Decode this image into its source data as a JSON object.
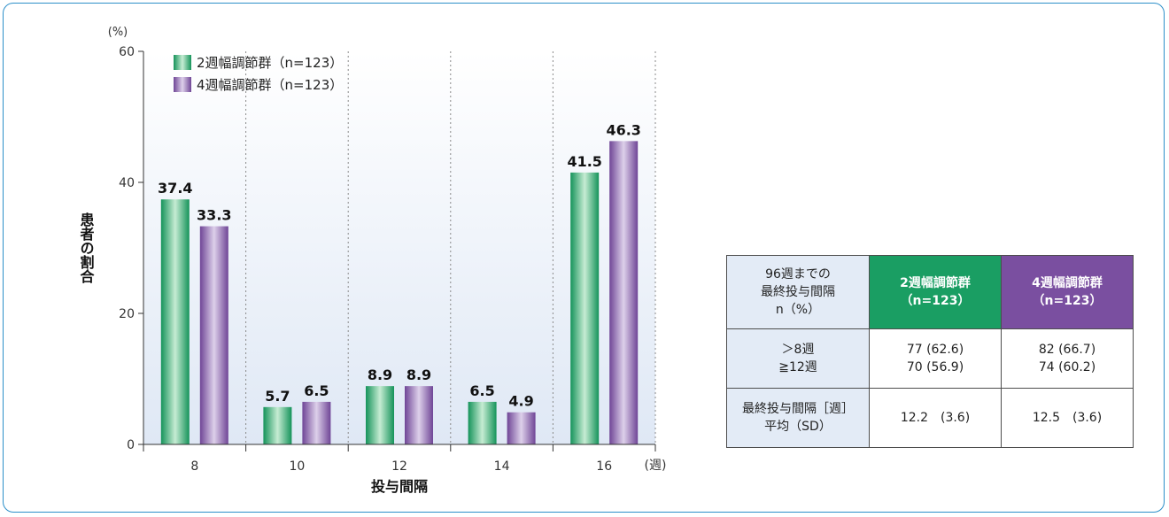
{
  "chart_data": {
    "type": "bar",
    "categories": [
      "8",
      "10",
      "12",
      "14",
      "16"
    ],
    "series": [
      {
        "name": "2週幅調節群（n=123）",
        "values": [
          37.4,
          5.7,
          8.9,
          6.5,
          41.5
        ],
        "color": "#1a9e63"
      },
      {
        "name": "4週幅調節群（n=123）",
        "values": [
          33.3,
          6.5,
          8.9,
          4.9,
          46.3
        ],
        "color": "#7a4fa0"
      }
    ],
    "data_labels_1": [
      "37.4",
      "5.7",
      "8.9",
      "6.5",
      "41.5"
    ],
    "data_labels_2": [
      "33.3",
      "6.5",
      "8.9",
      "4.9",
      "46.3"
    ],
    "ylim": [
      0,
      60
    ],
    "yticks": [
      0,
      20,
      40,
      60
    ],
    "ylabel": "患者の割合",
    "y_unit": "(%)",
    "xlabel": "投与間隔",
    "x_unit": "(週)",
    "legend_position": "top-left",
    "grid": "dotted vertical separators"
  },
  "table": {
    "header_label": [
      "96週までの",
      "最終投与間隔",
      "n（%）"
    ],
    "group1_head": [
      "2週幅調節群",
      "（n=123）"
    ],
    "group2_head": [
      "4週幅調節群",
      "（n=123）"
    ],
    "row1_label": [
      "＞8週",
      "≧12週"
    ],
    "row1_g1": [
      "77 (62.6)",
      "70 (56.9)"
    ],
    "row1_g2": [
      "82 (66.7)",
      "74 (60.2)"
    ],
    "row2_label": [
      "最終投与間隔［週］",
      "平均（SD）"
    ],
    "row2_g1": "12.2　(3.6)",
    "row2_g2": "12.5　(3.6)"
  }
}
